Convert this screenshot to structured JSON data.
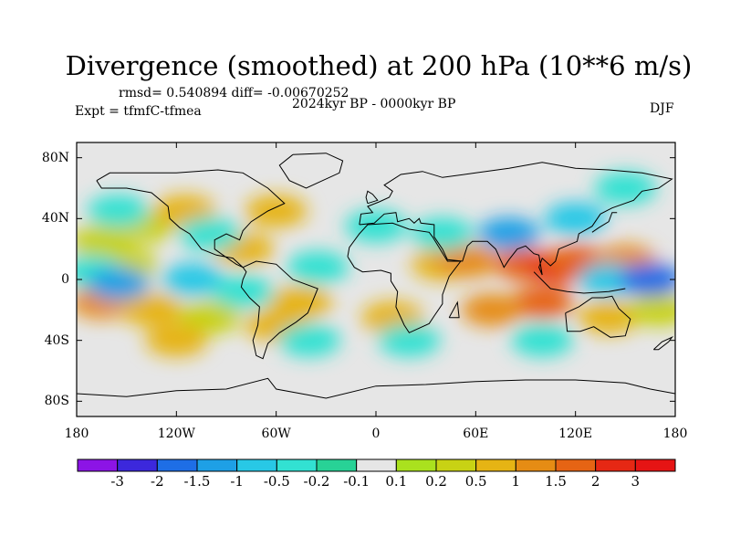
{
  "chart_data": {
    "type": "heatmap",
    "title": "Divergence (smoothed) at 200 hPa (10**6 m/s)",
    "stats_line": "rmsd= 0.540894 diff= -0.00670252",
    "period_label": "2024kyr BP - 0000kyr BP",
    "experiment_label": "Expt = tfmfC-tfmea",
    "season_label": "DJF",
    "x_range": [
      -180,
      180
    ],
    "y_range": [
      -90,
      90
    ],
    "y_ticks": [
      {
        "value": 80,
        "label": "80N"
      },
      {
        "value": 40,
        "label": "40N"
      },
      {
        "value": 0,
        "label": "0"
      },
      {
        "value": -40,
        "label": "40S"
      },
      {
        "value": -80,
        "label": "80S"
      }
    ],
    "x_ticks": [
      {
        "value": -180,
        "label": "180"
      },
      {
        "value": -120,
        "label": "120W"
      },
      {
        "value": -60,
        "label": "60W"
      },
      {
        "value": 0,
        "label": "0"
      },
      {
        "value": 60,
        "label": "60E"
      },
      {
        "value": 120,
        "label": "120E"
      },
      {
        "value": 180,
        "label": "180"
      }
    ],
    "levels": [
      "-3",
      "-2",
      "-1.5",
      "-1",
      "-0.5",
      "-0.2",
      "-0.1",
      "0.1",
      "0.2",
      "0.5",
      "1",
      "1.5",
      "2",
      "3"
    ],
    "colors": [
      "#8c14e6",
      "#3c28dc",
      "#1e6ee6",
      "#1ea0e6",
      "#28c8e6",
      "#32e1d2",
      "#28d296",
      "#e6e6e6",
      "#aae11e",
      "#c8d214",
      "#e6b414",
      "#e68c14",
      "#e66414",
      "#e62814",
      "#e61414"
    ],
    "field_regions": [
      {
        "lon": -150,
        "lat": 10,
        "value": 0.3
      },
      {
        "lon": -165,
        "lat": 25,
        "value": 0.4
      },
      {
        "lon": -140,
        "lat": 35,
        "value": 0.25
      },
      {
        "lon": -115,
        "lat": 45,
        "value": 0.5
      },
      {
        "lon": -60,
        "lat": 45,
        "value": 0.7
      },
      {
        "lon": -80,
        "lat": 20,
        "value": 0.6
      },
      {
        "lon": -165,
        "lat": -15,
        "value": 1.0
      },
      {
        "lon": -135,
        "lat": -20,
        "value": 0.6
      },
      {
        "lon": -100,
        "lat": -25,
        "value": 0.4
      },
      {
        "lon": -120,
        "lat": -40,
        "value": 0.5
      },
      {
        "lon": -60,
        "lat": -30,
        "value": 0.7
      },
      {
        "lon": -45,
        "lat": -15,
        "value": 0.5
      },
      {
        "lon": 10,
        "lat": -25,
        "value": 0.6
      },
      {
        "lon": 40,
        "lat": 10,
        "value": 0.9
      },
      {
        "lon": 55,
        "lat": 12,
        "value": 1.2
      },
      {
        "lon": 90,
        "lat": 10,
        "value": 1.6
      },
      {
        "lon": 110,
        "lat": 8,
        "value": 2.0
      },
      {
        "lon": 120,
        "lat": 12,
        "value": 1.5
      },
      {
        "lon": 150,
        "lat": 12,
        "value": 1.2
      },
      {
        "lon": 100,
        "lat": -15,
        "value": 1.8
      },
      {
        "lon": 70,
        "lat": -20,
        "value": 1.0
      },
      {
        "lon": 140,
        "lat": -25,
        "value": 0.8
      },
      {
        "lon": 170,
        "lat": -20,
        "value": 0.4
      },
      {
        "lon": -170,
        "lat": 5,
        "value": -0.4
      },
      {
        "lon": -155,
        "lat": -3,
        "value": -1.2
      },
      {
        "lon": -110,
        "lat": 0,
        "value": -0.6
      },
      {
        "lon": -80,
        "lat": -8,
        "value": -0.5
      },
      {
        "lon": -35,
        "lat": 8,
        "value": -0.4
      },
      {
        "lon": 0,
        "lat": 35,
        "value": -0.3
      },
      {
        "lon": 40,
        "lat": 30,
        "value": -0.5
      },
      {
        "lon": 80,
        "lat": 30,
        "value": -1.3
      },
      {
        "lon": 120,
        "lat": 40,
        "value": -0.6
      },
      {
        "lon": 150,
        "lat": 60,
        "value": -0.4
      },
      {
        "lon": 140,
        "lat": 0,
        "value": -1.0
      },
      {
        "lon": 165,
        "lat": 0,
        "value": -1.8
      },
      {
        "lon": 100,
        "lat": -40,
        "value": -0.4
      },
      {
        "lon": 20,
        "lat": -40,
        "value": -0.3
      },
      {
        "lon": -40,
        "lat": -40,
        "value": -0.3
      },
      {
        "lon": -155,
        "lat": 45,
        "value": -0.3
      },
      {
        "lon": -100,
        "lat": 30,
        "value": -0.5
      }
    ]
  }
}
